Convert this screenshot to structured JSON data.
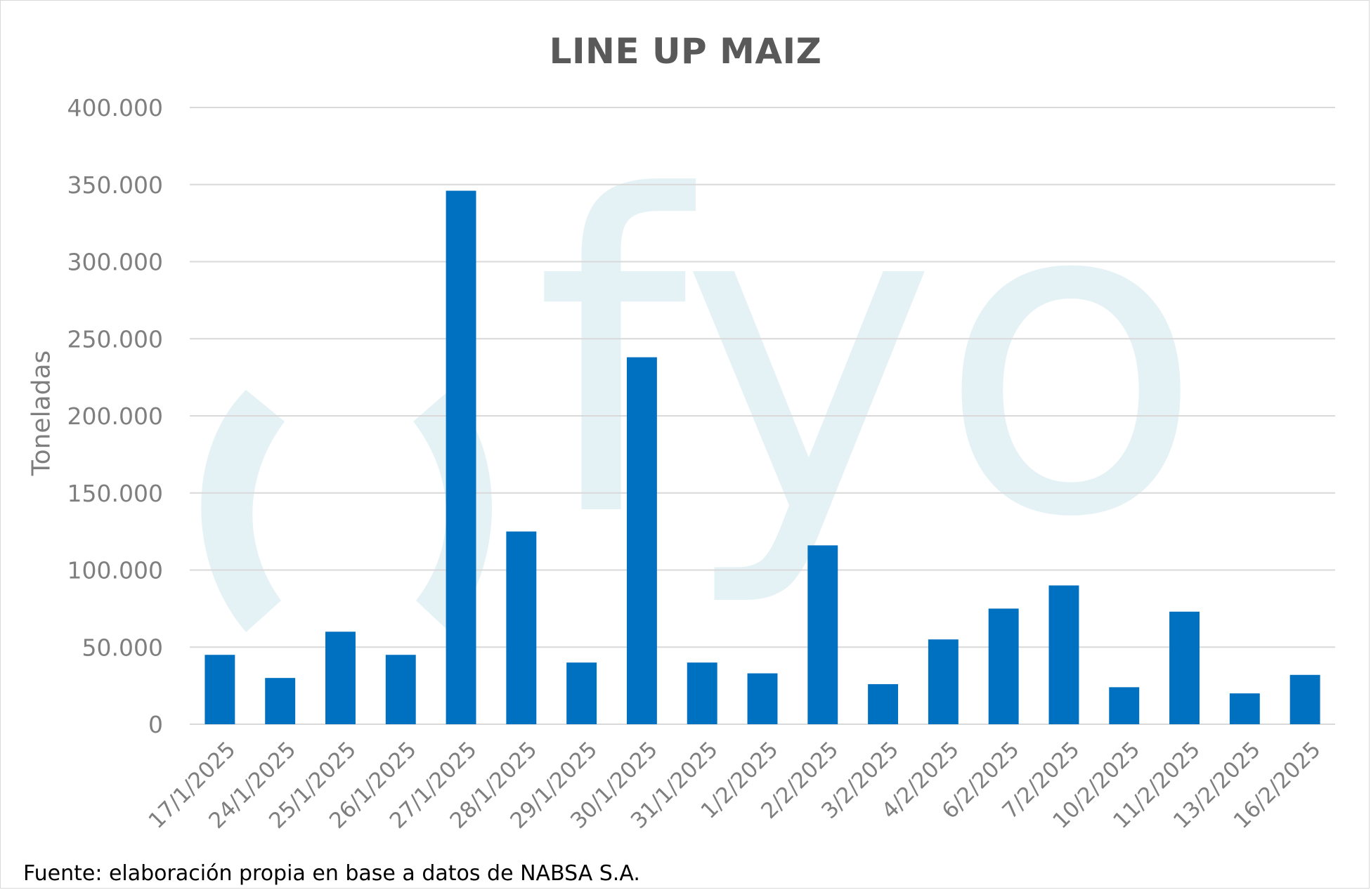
{
  "chart_data": {
    "type": "bar",
    "title": "LINE UP MAIZ",
    "xlabel": "",
    "ylabel": "Toneladas",
    "ylim": [
      0,
      400000
    ],
    "yticks": [
      0,
      50000,
      100000,
      150000,
      200000,
      250000,
      300000,
      350000,
      400000
    ],
    "ytick_labels": [
      "0",
      "50.000",
      "100.000",
      "150.000",
      "200.000",
      "250.000",
      "300.000",
      "350.000",
      "400.000"
    ],
    "grid": true,
    "legend": "none",
    "categories": [
      "17/1/2025",
      "24/1/2025",
      "25/1/2025",
      "26/1/2025",
      "27/1/2025",
      "28/1/2025",
      "29/1/2025",
      "30/1/2025",
      "31/1/2025",
      "1/2/2025",
      "2/2/2025",
      "3/2/2025",
      "4/2/2025",
      "6/2/2025",
      "7/2/2025",
      "10/2/2025",
      "11/2/2025",
      "13/2/2025",
      "16/2/2025"
    ],
    "values": [
      45000,
      30000,
      60000,
      45000,
      346000,
      125000,
      40000,
      238000,
      40000,
      33000,
      116000,
      26000,
      55000,
      75000,
      90000,
      24000,
      73000,
      20000,
      32000
    ],
    "bar_color": "#0070c0",
    "grid_color": "#d9d9d9",
    "axis_text_color": "#7f7f7f"
  },
  "footnote": "Fuente: elaboración propia en base a datos de NABSA S.A.",
  "watermark": {
    "text": "fyo",
    "color": "#e4f2f6"
  }
}
